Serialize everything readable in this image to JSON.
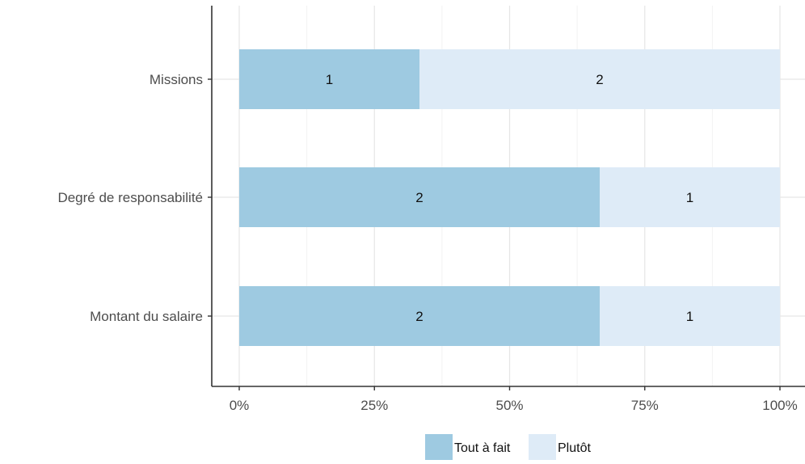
{
  "chart_data": {
    "type": "bar",
    "orientation": "horizontal",
    "stacked": "percent",
    "title": "",
    "xlabel": "",
    "ylabel": "",
    "categories": [
      "Missions",
      "Degré de responsabilité",
      "Montant du salaire"
    ],
    "series": [
      {
        "name": "Tout à fait",
        "values": [
          1,
          2,
          2
        ],
        "color": "#9ecae1"
      },
      {
        "name": "Plutôt",
        "values": [
          2,
          1,
          1
        ],
        "color": "#deebf7"
      }
    ],
    "xlim": [
      0,
      100
    ],
    "x_ticks": [
      "0%",
      "25%",
      "50%",
      "75%",
      "100%"
    ],
    "grid": true,
    "legend": "bottom"
  }
}
